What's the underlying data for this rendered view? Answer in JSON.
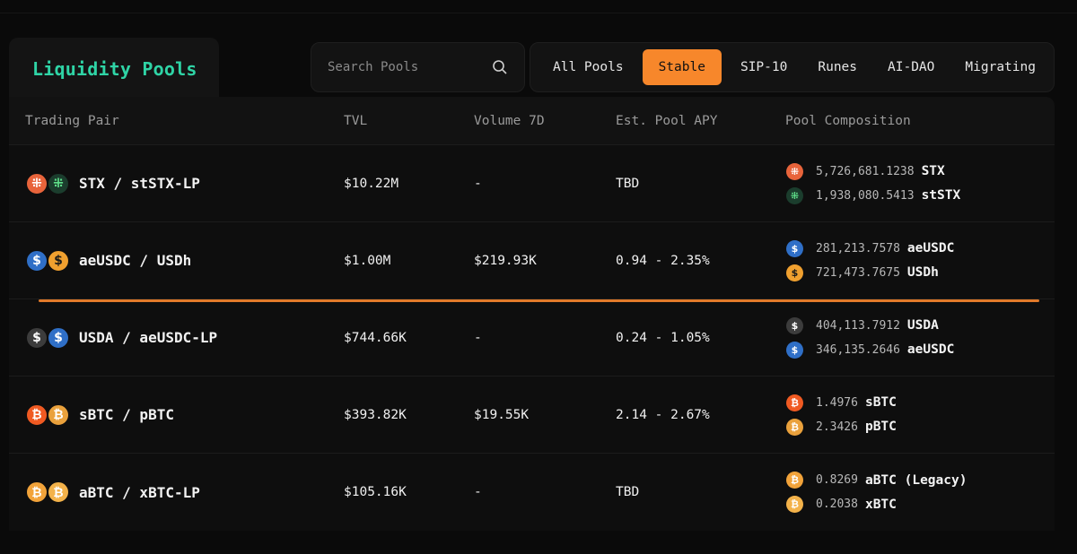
{
  "title": "Liquidity Pools",
  "search": {
    "placeholder": "Search Pools",
    "icon": "search-icon"
  },
  "filters": [
    {
      "label": "All Pools",
      "active": false
    },
    {
      "label": "Stable",
      "active": true
    },
    {
      "label": "SIP-10",
      "active": false
    },
    {
      "label": "Runes",
      "active": false
    },
    {
      "label": "AI-DAO",
      "active": false
    },
    {
      "label": "Migrating",
      "active": false
    }
  ],
  "colors": {
    "accent": "#f7872b",
    "title": "#2fd4a6",
    "divider": "#e27a2a"
  },
  "columns": {
    "pair": "Trading Pair",
    "tvl": "TVL",
    "volume": "Volume 7D",
    "apy": "Est. Pool APY",
    "composition": "Pool Composition"
  },
  "pools": [
    {
      "pair": "STX / stSTX-LP",
      "tvl": "$10.22M",
      "volume": "-",
      "apy": "TBD",
      "icons": [
        "stx",
        "ststx"
      ],
      "composition": [
        {
          "amount": "5,726,681.1238",
          "token": "STX",
          "icon": "stx"
        },
        {
          "amount": "1,938,080.5413",
          "token": "stSTX",
          "icon": "ststx"
        }
      ]
    },
    {
      "pair": "aeUSDC / USDh",
      "tvl": "$1.00M",
      "volume": "$219.93K",
      "apy": "0.94 - 2.35%",
      "icons": [
        "usdc",
        "usdh"
      ],
      "composition": [
        {
          "amount": "281,213.7578",
          "token": "aeUSDC",
          "icon": "usdc"
        },
        {
          "amount": "721,473.7675",
          "token": "USDh",
          "icon": "usdh"
        }
      ]
    },
    {
      "pair": "USDA / aeUSDC-LP",
      "tvl": "$744.66K",
      "volume": "-",
      "apy": "0.24 - 1.05%",
      "icons": [
        "usda",
        "usdc"
      ],
      "composition": [
        {
          "amount": "404,113.7912",
          "token": "USDA",
          "icon": "usda"
        },
        {
          "amount": "346,135.2646",
          "token": "aeUSDC",
          "icon": "usdc"
        }
      ]
    },
    {
      "pair": "sBTC / pBTC",
      "tvl": "$393.82K",
      "volume": "$19.55K",
      "apy": "2.14 - 2.67%",
      "icons": [
        "sbtc",
        "pbtc"
      ],
      "composition": [
        {
          "amount": "1.4976",
          "token": "sBTC",
          "icon": "sbtc"
        },
        {
          "amount": "2.3426",
          "token": "pBTC",
          "icon": "pbtc"
        }
      ]
    },
    {
      "pair": "aBTC / xBTC-LP",
      "tvl": "$105.16K",
      "volume": "-",
      "apy": "TBD",
      "icons": [
        "abtc",
        "xbtc"
      ],
      "composition": [
        {
          "amount": "0.8269",
          "token": "aBTC (Legacy)",
          "icon": "abtc"
        },
        {
          "amount": "0.2038",
          "token": "xBTC",
          "icon": "xbtc"
        }
      ]
    }
  ]
}
